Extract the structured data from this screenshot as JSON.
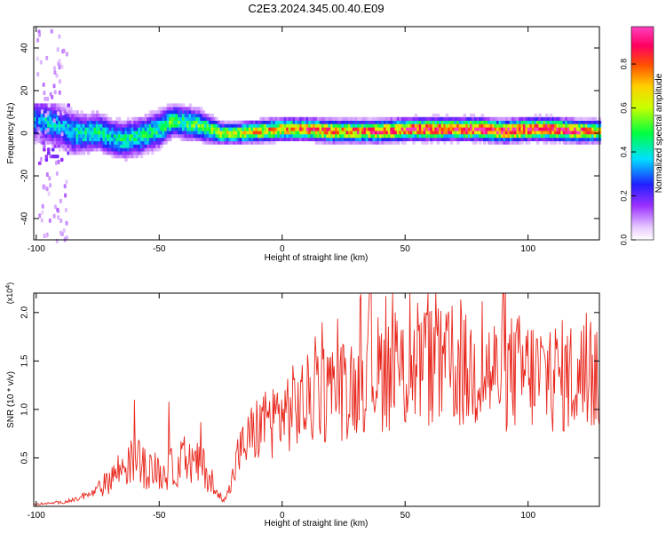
{
  "title": "C2E3.2024.345.00.40.E09",
  "chart_data": [
    {
      "type": "heatmap",
      "title": "C2E3.2024.345.00.40.E09",
      "xlabel": "Height of straight line (km)",
      "ylabel": "Frequency (Hz)",
      "xlim": [
        -101,
        129
      ],
      "ylim": [
        -50,
        50
      ],
      "x_ticks": [
        -100,
        -50,
        0,
        50,
        100
      ],
      "y_ticks": [
        -40,
        -20,
        0,
        20,
        40
      ],
      "x_tick_labels": [
        "-100",
        "-50",
        "0",
        "50",
        "100"
      ],
      "y_tick_labels": [
        "-40",
        "-20",
        "0",
        "20",
        "40"
      ],
      "colorbar": {
        "label": "Normalized spectral amplitude",
        "range": [
          0,
          0.97
        ],
        "ticks": [
          0.0,
          0.2,
          0.4,
          0.6,
          0.8
        ],
        "tick_labels": [
          "0.0",
          "0.2",
          "0.4",
          "0.6",
          "0.8"
        ],
        "colormap": [
          "#ffffff",
          "#e6c8ff",
          "#9b30ff",
          "#2020ff",
          "#00e0ff",
          "#00ff40",
          "#c8ff00",
          "#ffd000",
          "#ff5000",
          "#ff0060",
          "#ff40c0"
        ]
      },
      "ridge": {
        "x": [
          -100,
          -95,
          -90,
          -85,
          -80,
          -75,
          -70,
          -65,
          -60,
          -55,
          -50,
          -45,
          -40,
          -35,
          -30,
          -25,
          -20,
          -10,
          0,
          10,
          20,
          30,
          40,
          50,
          60,
          70,
          80,
          90,
          100,
          110,
          120,
          128
        ],
        "frequency": [
          6,
          5,
          3,
          0,
          0,
          1,
          -2,
          -3,
          -2,
          0,
          2,
          6,
          5,
          4,
          2,
          0,
          0,
          1,
          2,
          2,
          1,
          1,
          1,
          2,
          2,
          2,
          2,
          1,
          2,
          2,
          1,
          1
        ],
        "amplitude": [
          0.35,
          0.4,
          0.35,
          0.4,
          0.45,
          0.45,
          0.4,
          0.45,
          0.45,
          0.45,
          0.45,
          0.5,
          0.5,
          0.5,
          0.55,
          0.6,
          0.6,
          0.7,
          0.75,
          0.8,
          0.8,
          0.8,
          0.85,
          0.85,
          0.9,
          0.9,
          0.95,
          0.95,
          0.95,
          0.95,
          0.85,
          0.7
        ],
        "width": [
          8,
          8,
          8,
          8,
          7,
          7,
          7,
          7,
          7,
          7,
          7,
          6,
          6,
          6,
          5,
          4,
          4,
          4,
          4,
          4,
          4,
          4,
          4,
          4,
          4,
          4,
          4,
          4,
          4,
          4,
          4,
          4
        ]
      }
    },
    {
      "type": "line",
      "xlabel": "Height of straight line (km)",
      "ylabel": "SNR (10 * v/v)",
      "y_multiplier": "(x10^4)",
      "xlim": [
        -101,
        129
      ],
      "ylim": [
        0,
        22000
      ],
      "x_ticks": [
        -100,
        -50,
        0,
        50,
        100
      ],
      "y_ticks": [
        5000,
        10000,
        15000,
        20000
      ],
      "x_tick_labels": [
        "-100",
        "-50",
        "0",
        "50",
        "100"
      ],
      "y_tick_labels": [
        "0.5",
        "1.0",
        "1.5",
        "2.0"
      ],
      "color": "#e8281e",
      "series": [
        {
          "x": [
            -101,
            -95,
            -90,
            -85,
            -80,
            -75,
            -72,
            -70,
            -66,
            -62,
            -58,
            -55,
            -52,
            -48,
            -45,
            -42,
            -40,
            -38,
            -35,
            -32,
            -29,
            -27,
            -25,
            -22,
            -20,
            -18,
            -15,
            -12,
            -10,
            -5,
            0,
            5,
            10,
            15,
            20,
            25,
            30,
            35,
            40,
            45,
            50,
            55,
            60,
            65,
            70,
            75,
            80,
            85,
            90,
            95,
            100,
            105,
            110,
            115,
            120,
            125,
            129
          ],
          "y": [
            200,
            300,
            400,
            600,
            1000,
            1600,
            2300,
            3000,
            3800,
            4500,
            4600,
            3800,
            3700,
            3300,
            3900,
            4400,
            4600,
            4500,
            4300,
            4000,
            2700,
            1200,
            1000,
            1200,
            3000,
            5200,
            6400,
            7500,
            8000,
            8800,
            9600,
            10200,
            10800,
            11800,
            11600,
            12200,
            13000,
            14200,
            13700,
            14000,
            13500,
            14100,
            14500,
            14000,
            14200,
            13800,
            14200,
            13800,
            13600,
            13900,
            13700,
            13500,
            13400,
            13400,
            13300,
            13200,
            13200
          ],
          "peaks": [
            [
              -60,
              11000
            ],
            [
              -46,
              10800
            ],
            [
              -33,
              8700
            ],
            [
              23,
              14000
            ],
            [
              30,
              14100
            ],
            [
              32,
              21900
            ],
            [
              36,
              22000
            ],
            [
              42,
              21700
            ],
            [
              46,
              20000
            ],
            [
              52,
              22000
            ],
            [
              55,
              21000
            ],
            [
              58,
              20000
            ],
            [
              60,
              20100
            ]
          ]
        }
      ]
    }
  ]
}
